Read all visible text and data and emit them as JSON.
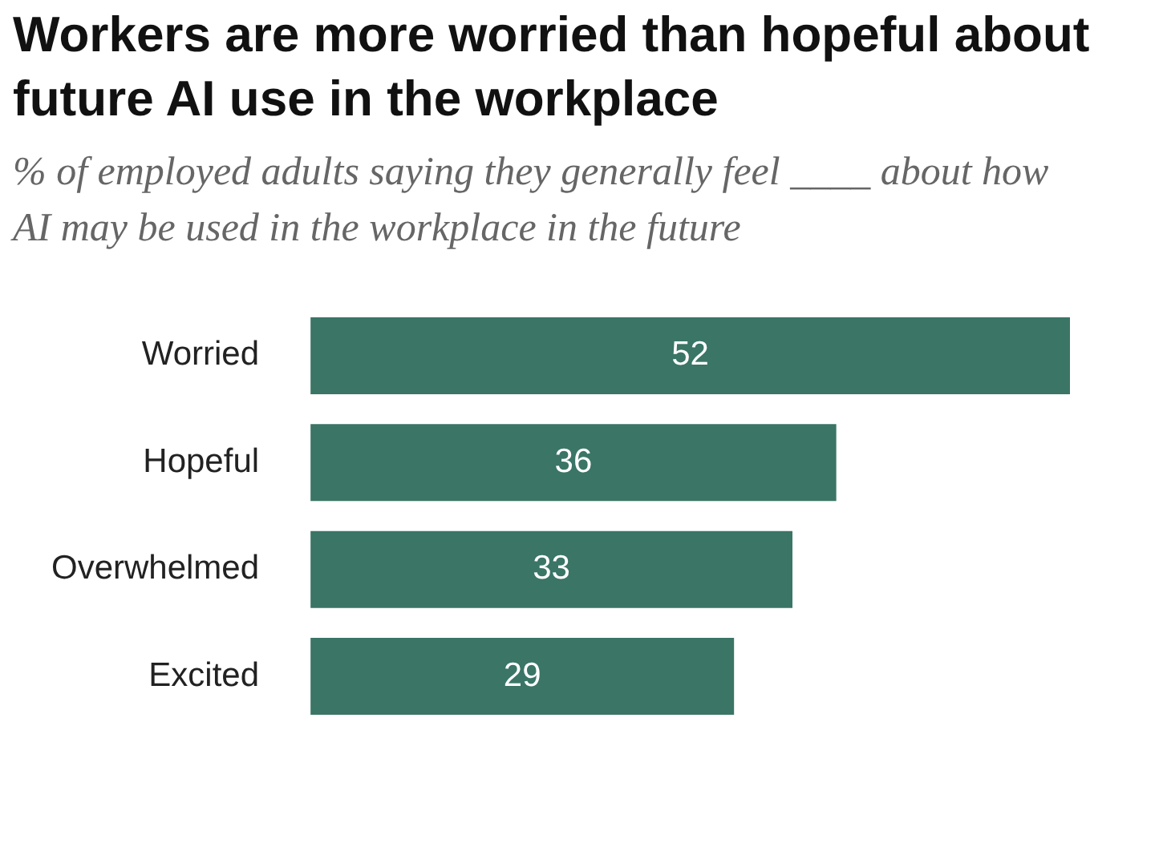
{
  "chart_data": {
    "type": "bar",
    "orientation": "horizontal",
    "title": "Workers are more worried than hopeful about future AI use in the workplace",
    "subtitle": "% of employed adults saying they generally feel ____ about how AI may be used in the workplace in the future",
    "categories": [
      "Worried",
      "Hopeful",
      "Overwhelmed",
      "Excited"
    ],
    "values": [
      52,
      36,
      33,
      29
    ],
    "color": "#3a7566",
    "data_labels": true
  }
}
